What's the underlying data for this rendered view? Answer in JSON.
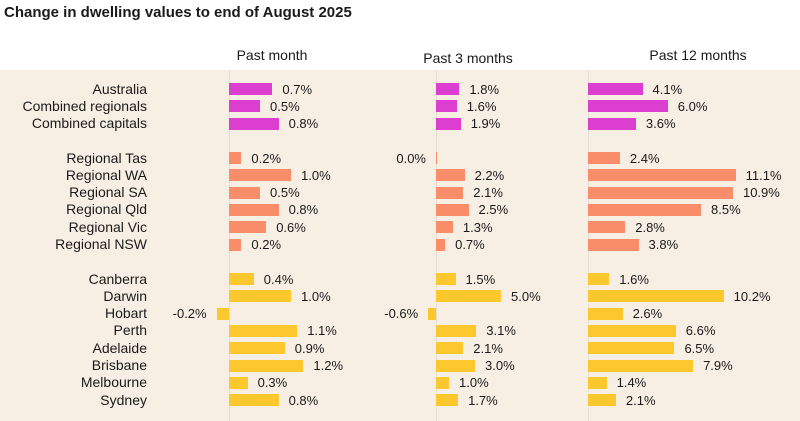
{
  "chart_data": {
    "type": "bar",
    "orientation": "horizontal",
    "title": "Change in dwelling values to end of August 2025",
    "columns": [
      "Past month",
      "Past 3 months",
      "Past 12 months"
    ],
    "colors": {
      "national": "#dc3fcf",
      "regional": "#f98c69",
      "capital": "#fdc72e"
    },
    "groups": [
      {
        "color": "national",
        "rows": [
          {
            "name": "Australia",
            "values": [
              0.7,
              1.8,
              4.1
            ],
            "labels": [
              "0.7%",
              "1.8%",
              "4.1%"
            ]
          },
          {
            "name": "Combined regionals",
            "values": [
              0.5,
              1.6,
              6.0
            ],
            "labels": [
              "0.5%",
              "1.6%",
              "6.0%"
            ]
          },
          {
            "name": "Combined capitals",
            "values": [
              0.8,
              1.9,
              3.6
            ],
            "labels": [
              "0.8%",
              "1.9%",
              "3.6%"
            ]
          }
        ]
      },
      {
        "color": "regional",
        "rows": [
          {
            "name": "Regional Tas",
            "values": [
              0.2,
              0.0,
              2.4
            ],
            "labels": [
              "0.2%",
              "0.0%",
              "2.4%"
            ]
          },
          {
            "name": "Regional WA",
            "values": [
              1.0,
              2.2,
              11.1
            ],
            "labels": [
              "1.0%",
              "2.2%",
              "11.1%"
            ]
          },
          {
            "name": "Regional SA",
            "values": [
              0.5,
              2.1,
              10.9
            ],
            "labels": [
              "0.5%",
              "2.1%",
              "10.9%"
            ]
          },
          {
            "name": "Regional Qld",
            "values": [
              0.8,
              2.5,
              8.5
            ],
            "labels": [
              "0.8%",
              "2.5%",
              "8.5%"
            ]
          },
          {
            "name": "Regional Vic",
            "values": [
              0.6,
              1.3,
              2.8
            ],
            "labels": [
              "0.6%",
              "1.3%",
              "2.8%"
            ]
          },
          {
            "name": "Regional NSW",
            "values": [
              0.2,
              0.7,
              3.8
            ],
            "labels": [
              "0.2%",
              "0.7%",
              "3.8%"
            ]
          }
        ]
      },
      {
        "color": "capital",
        "rows": [
          {
            "name": "Canberra",
            "values": [
              0.4,
              1.5,
              1.6
            ],
            "labels": [
              "0.4%",
              "1.5%",
              "1.6%"
            ]
          },
          {
            "name": "Darwin",
            "values": [
              1.0,
              5.0,
              10.2
            ],
            "labels": [
              "1.0%",
              "5.0%",
              "10.2%"
            ]
          },
          {
            "name": "Hobart",
            "values": [
              -0.2,
              -0.6,
              2.6
            ],
            "labels": [
              "-0.2%",
              "-0.6%",
              "2.6%"
            ]
          },
          {
            "name": "Perth",
            "values": [
              1.1,
              3.1,
              6.6
            ],
            "labels": [
              "1.1%",
              "3.1%",
              "6.6%"
            ]
          },
          {
            "name": "Adelaide",
            "values": [
              0.9,
              2.1,
              6.5
            ],
            "labels": [
              "0.9%",
              "2.1%",
              "6.5%"
            ]
          },
          {
            "name": "Brisbane",
            "values": [
              1.2,
              3.0,
              7.9
            ],
            "labels": [
              "1.2%",
              "3.0%",
              "7.9%"
            ]
          },
          {
            "name": "Melbourne",
            "values": [
              0.3,
              1.0,
              1.4
            ],
            "labels": [
              "0.3%",
              "1.0%",
              "1.4%"
            ]
          },
          {
            "name": "Sydney",
            "values": [
              0.8,
              1.7,
              2.1
            ],
            "labels": [
              "0.8%",
              "1.7%",
              "2.1%"
            ]
          }
        ]
      }
    ]
  }
}
